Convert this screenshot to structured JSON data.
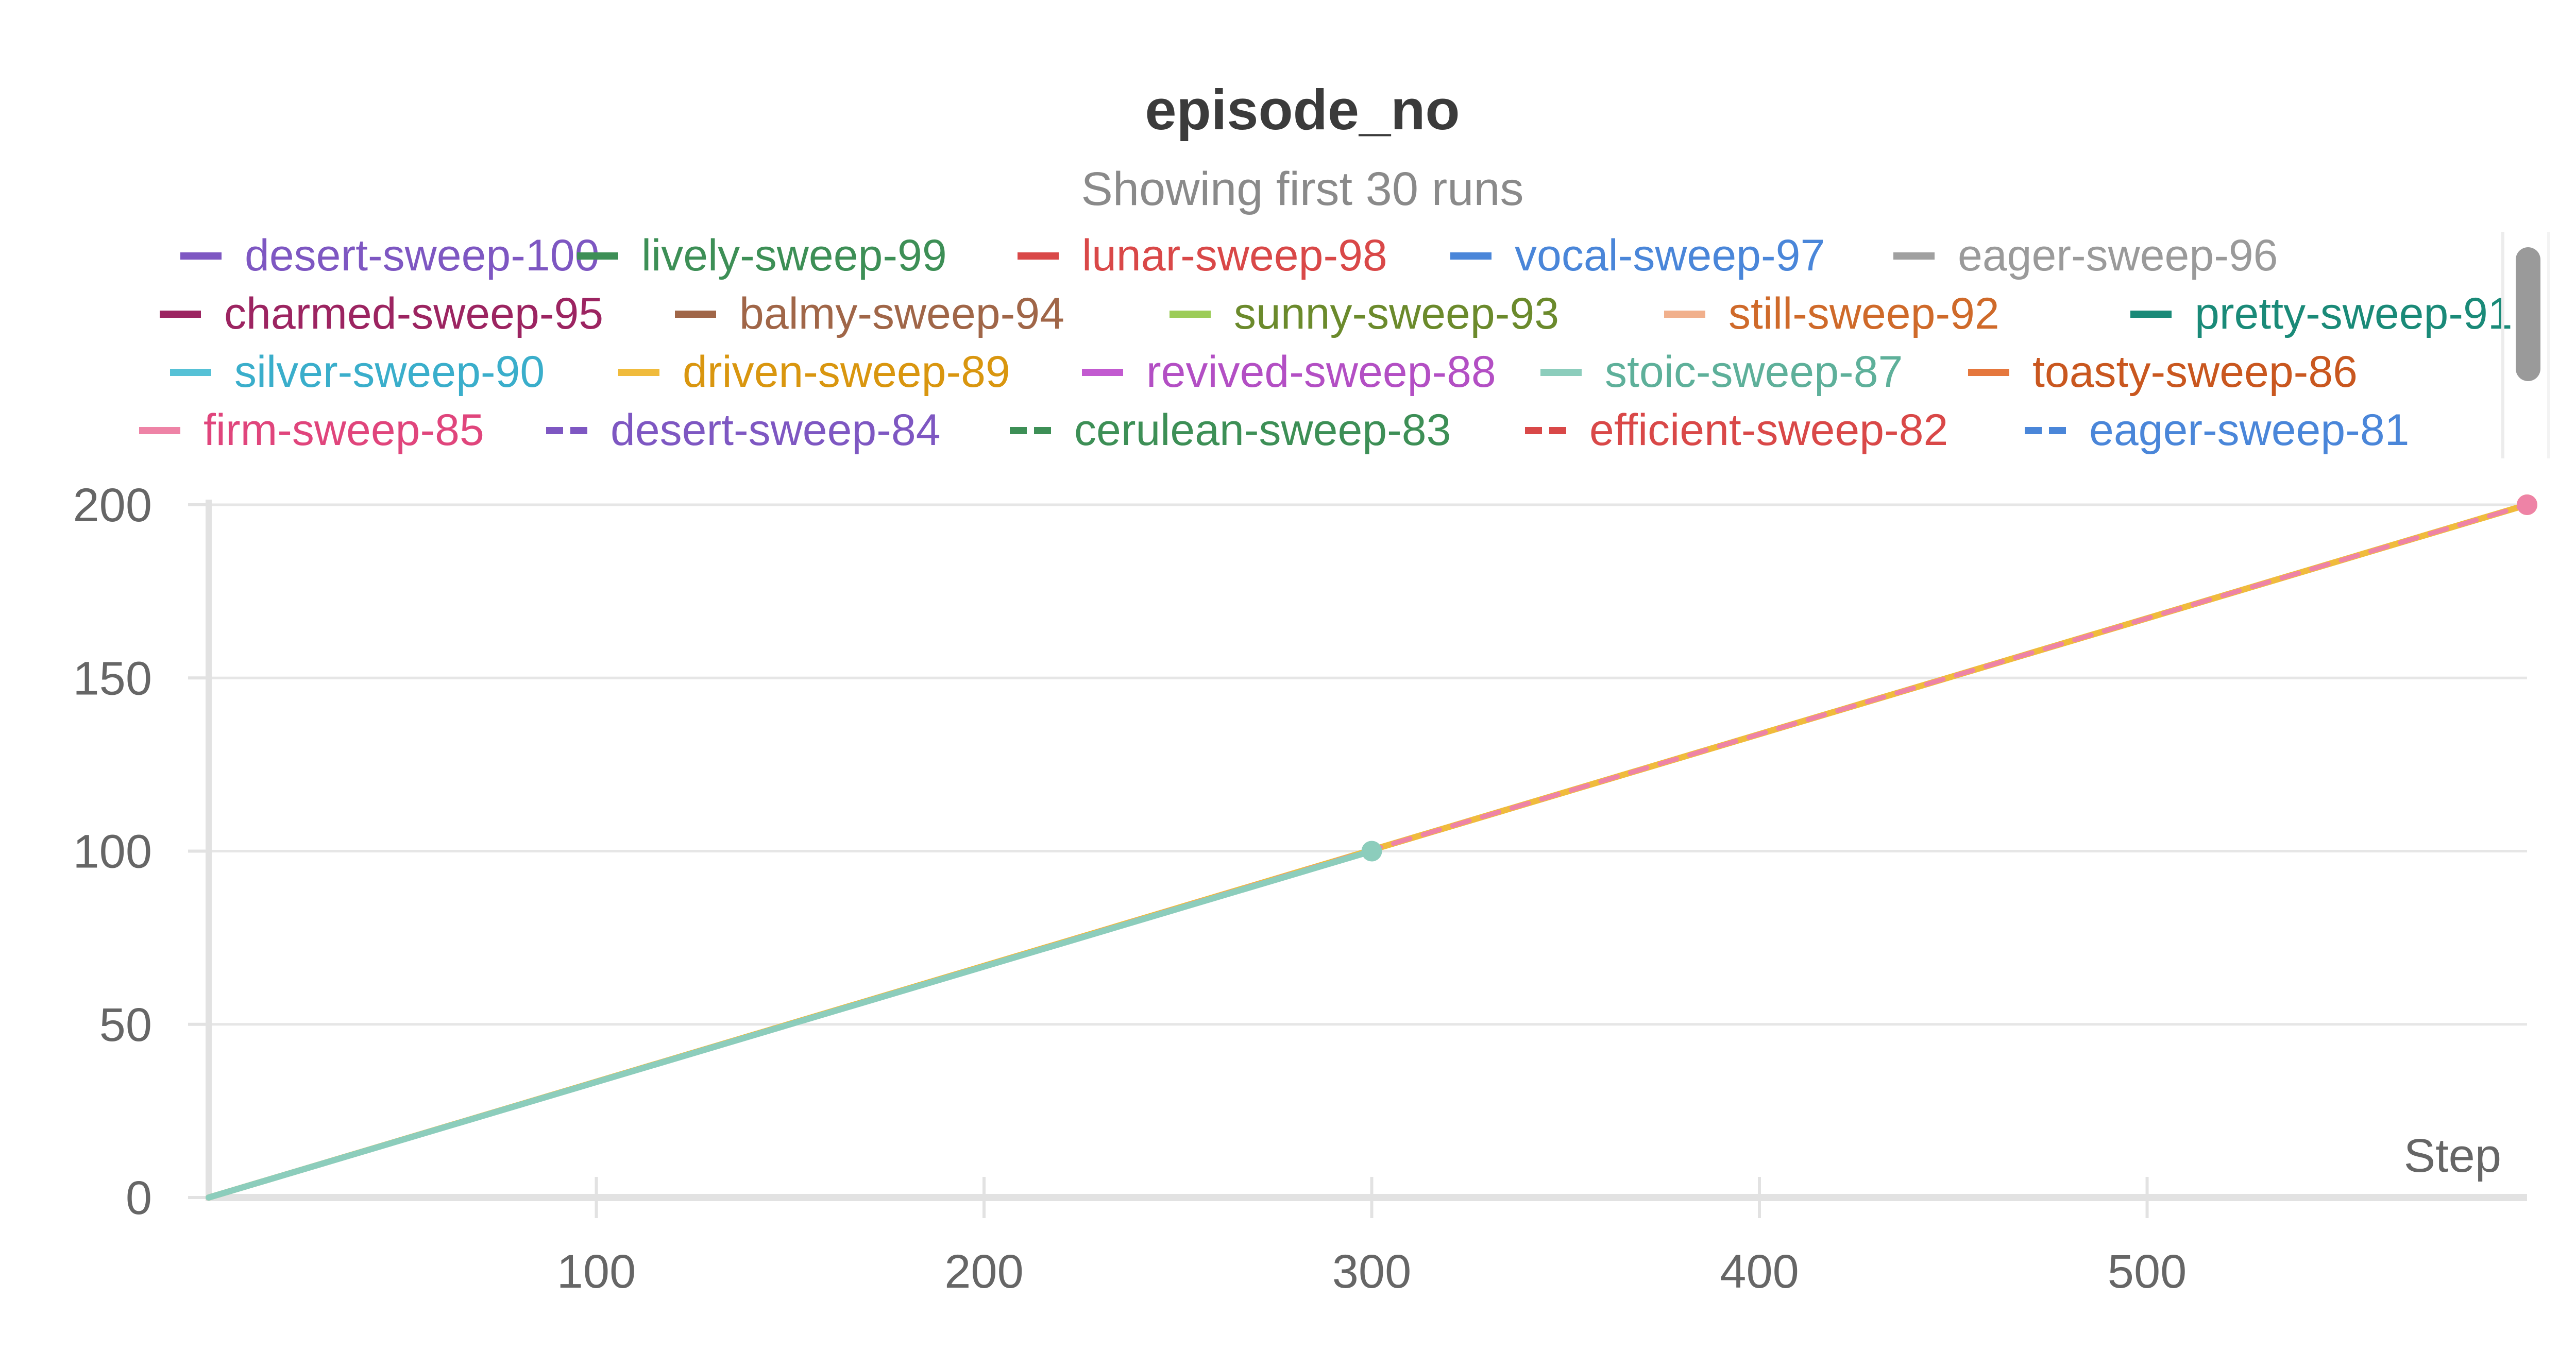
{
  "chart_data": {
    "type": "line",
    "title": "episode_no",
    "subtitle": "Showing first 30 runs",
    "xlabel": "Step",
    "ylabel": "",
    "xlim": [
      0,
      598
    ],
    "ylim": [
      0,
      200
    ],
    "x_ticks": [
      100,
      200,
      300,
      400,
      500
    ],
    "y_ticks": [
      0,
      50,
      100,
      150,
      200
    ],
    "grid": "horizontal",
    "legend_position": "top",
    "series": [
      {
        "name": "desert-sweep-100",
        "color": "#7e57c2",
        "style": "solid",
        "x": [],
        "y": []
      },
      {
        "name": "lively-sweep-99",
        "color": "#3d8f56",
        "style": "solid",
        "x": [],
        "y": []
      },
      {
        "name": "lunar-sweep-98",
        "color": "#d94848",
        "style": "solid",
        "x": [],
        "y": []
      },
      {
        "name": "vocal-sweep-97",
        "color": "#4a86d9",
        "style": "solid",
        "x": [],
        "y": []
      },
      {
        "name": "eager-sweep-96",
        "color": "#a0a0a0",
        "style": "solid",
        "x": [],
        "y": []
      },
      {
        "name": "charmed-sweep-95",
        "color": "#9c2461",
        "style": "solid",
        "x": [],
        "y": []
      },
      {
        "name": "balmy-sweep-94",
        "color": "#a06648",
        "style": "solid",
        "x": [],
        "y": []
      },
      {
        "name": "sunny-sweep-93",
        "color": "#9ccc58",
        "style": "solid",
        "x": [],
        "y": []
      },
      {
        "name": "still-sweep-92",
        "color": "#f1b08c",
        "style": "solid",
        "x": [],
        "y": []
      },
      {
        "name": "pretty-sweep-91",
        "color": "#1a8a78",
        "style": "solid",
        "x": [],
        "y": []
      },
      {
        "name": "silver-sweep-90",
        "color": "#56c1d6",
        "style": "solid",
        "x": [],
        "y": []
      },
      {
        "name": "driven-sweep-89",
        "color": "#f0bb3c",
        "style": "solid",
        "x": [
          0,
          598
        ],
        "y": [
          0,
          200
        ]
      },
      {
        "name": "revived-sweep-88",
        "color": "#c25ad0",
        "style": "solid",
        "x": [],
        "y": []
      },
      {
        "name": "stoic-sweep-87",
        "color": "#8ccdbc",
        "style": "solid",
        "x": [
          0,
          300
        ],
        "y": [
          0,
          100
        ]
      },
      {
        "name": "toasty-sweep-86",
        "color": "#e5773d",
        "style": "solid",
        "x": [],
        "y": []
      },
      {
        "name": "firm-sweep-85",
        "color": "#ee83a6",
        "style": "solid",
        "x": [
          0,
          598
        ],
        "y": [
          0,
          200
        ]
      },
      {
        "name": "desert-sweep-84",
        "color": "#7e57c2",
        "style": "dashed",
        "x": [],
        "y": []
      },
      {
        "name": "cerulean-sweep-83",
        "color": "#3d8f56",
        "style": "dashed",
        "x": [],
        "y": []
      },
      {
        "name": "efficient-sweep-82",
        "color": "#d94848",
        "style": "dashed",
        "x": [],
        "y": []
      },
      {
        "name": "eager-sweep-81",
        "color": "#4a86d9",
        "style": "dashed",
        "x": [],
        "y": []
      }
    ],
    "legend_text_colors": [
      "#7e57c2",
      "#3d8f56",
      "#d94848",
      "#4a86d9",
      "#9a9a9a",
      "#9c2461",
      "#a06648",
      "#6b8a2c",
      "#cf6a2a",
      "#1a8a78",
      "#3aaecb",
      "#d9960f",
      "#b34fc4",
      "#5eb09a",
      "#c9571f",
      "#e0457c",
      "#7e57c2",
      "#3d8f56",
      "#d94848",
      "#4a86d9"
    ]
  }
}
